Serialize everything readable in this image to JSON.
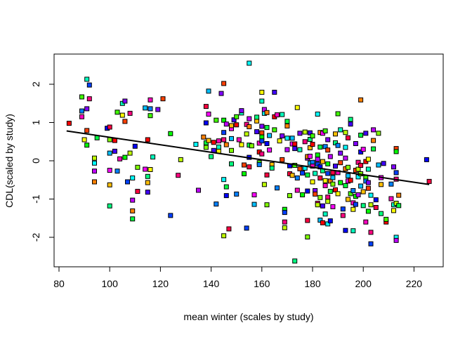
{
  "chart_data": {
    "type": "scatter",
    "title": "",
    "xlabel": "mean winter (scales by study)",
    "ylabel": "CDL(scaled by study)",
    "xlim": [
      80,
      230
    ],
    "ylim": [
      -2.8,
      2.7
    ],
    "xticks": [
      80,
      100,
      120,
      140,
      160,
      180,
      200,
      220
    ],
    "yticks": [
      -2,
      -1,
      0,
      1,
      2
    ],
    "grid": false,
    "legend": "none",
    "marker": "square",
    "regression_line": {
      "x": [
        83,
        226
      ],
      "y": [
        0.78,
        -0.62
      ],
      "color": "#000000"
    },
    "palette": [
      "#ff0000",
      "#ff4000",
      "#ff8000",
      "#ffbf00",
      "#ffff00",
      "#bfff00",
      "#80ff00",
      "#40ff00",
      "#00ff00",
      "#00ff40",
      "#00ff80",
      "#00ffbf",
      "#00ffff",
      "#00bfff",
      "#0080ff",
      "#0040ff",
      "#0000ff",
      "#4000ff",
      "#8000ff",
      "#bf00ff",
      "#ff00ff",
      "#ff00bf",
      "#ff0080",
      "#ff0040"
    ],
    "points": [
      [
        84,
        0.98
      ],
      [
        89,
        1.67
      ],
      [
        89,
        1.3
      ],
      [
        89,
        1.15
      ],
      [
        90,
        0.55
      ],
      [
        91,
        2.13
      ],
      [
        91,
        1.36
      ],
      [
        91,
        0.79
      ],
      [
        91,
        0.41
      ],
      [
        92,
        1.98
      ],
      [
        92,
        1.62
      ],
      [
        94,
        0.07
      ],
      [
        94,
        -0.06
      ],
      [
        94,
        -0.27
      ],
      [
        94,
        -0.55
      ],
      [
        95,
        0.6
      ],
      [
        99,
        0.85
      ],
      [
        100,
        0.88
      ],
      [
        100,
        0.55
      ],
      [
        100,
        0.2
      ],
      [
        100,
        -0.25
      ],
      [
        100,
        -0.63
      ],
      [
        100,
        -1.18
      ],
      [
        102,
        0.25
      ],
      [
        102,
        0.53
      ],
      [
        103,
        1.27
      ],
      [
        103,
        -0.27
      ],
      [
        104,
        0.05
      ],
      [
        105,
        1.19
      ],
      [
        105,
        1.5
      ],
      [
        106,
        1.56
      ],
      [
        106,
        1.03
      ],
      [
        106,
        0.09
      ],
      [
        107,
        -0.55
      ],
      [
        108,
        1.24
      ],
      [
        108,
        0.2
      ],
      [
        109,
        -0.45
      ],
      [
        109,
        -1.03
      ],
      [
        109,
        -1.31
      ],
      [
        109,
        -1.52
      ],
      [
        110,
        0.38
      ],
      [
        111,
        -0.8
      ],
      [
        111,
        -0.17
      ],
      [
        114,
        1.38
      ],
      [
        114,
        -0.22
      ],
      [
        115,
        -0.57
      ],
      [
        115,
        -0.41
      ],
      [
        115,
        -0.82
      ],
      [
        115,
        0.55
      ],
      [
        116,
        1.18
      ],
      [
        116,
        1.36
      ],
      [
        116,
        1.59
      ],
      [
        116,
        -0.23
      ],
      [
        117,
        0.1
      ],
      [
        119,
        1.34
      ],
      [
        121,
        1.62
      ],
      [
        124,
        0.71
      ],
      [
        124,
        -1.43
      ],
      [
        127,
        -0.38
      ],
      [
        128,
        0.03
      ],
      [
        134,
        0.43
      ],
      [
        135,
        -0.77
      ],
      [
        137,
        0.62
      ],
      [
        138,
        0.47
      ],
      [
        138,
        0.99
      ],
      [
        138,
        1.42
      ],
      [
        138,
        0.35
      ],
      [
        139,
        1.82
      ],
      [
        139,
        1.22
      ],
      [
        139,
        0.53
      ],
      [
        140,
        0.11
      ],
      [
        141,
        0.27
      ],
      [
        141,
        0.48
      ],
      [
        142,
        1.06
      ],
      [
        142,
        -1.13
      ],
      [
        143,
        0.52
      ],
      [
        143,
        0.25
      ],
      [
        143,
        0.36
      ],
      [
        144,
        1.76
      ],
      [
        145,
        2.02
      ],
      [
        145,
        1.06
      ],
      [
        145,
        0.74
      ],
      [
        145,
        0.55
      ],
      [
        145,
        -1.96
      ],
      [
        145,
        -0.49
      ],
      [
        146,
        0.96
      ],
      [
        146,
        0.42
      ],
      [
        146,
        -0.68
      ],
      [
        146,
        -0.91
      ],
      [
        147,
        -1.78
      ],
      [
        148,
        0.27
      ],
      [
        148,
        0.58
      ],
      [
        148,
        0.84
      ],
      [
        148,
        0.92
      ],
      [
        148,
        -0.08
      ],
      [
        149,
        1.07
      ],
      [
        150,
        0.94
      ],
      [
        150,
        1.15
      ],
      [
        150,
        -0.87
      ],
      [
        151,
        0.55
      ],
      [
        152,
        0.42
      ],
      [
        152,
        1.25
      ],
      [
        152,
        1.31
      ],
      [
        153,
        -0.11
      ],
      [
        153,
        -0.34
      ],
      [
        154,
        -1.76
      ],
      [
        154,
        0.95
      ],
      [
        154,
        0.7
      ],
      [
        155,
        2.55
      ],
      [
        155,
        1.1
      ],
      [
        155,
        0.89
      ],
      [
        155,
        0.41
      ],
      [
        155,
        0.09
      ],
      [
        155,
        -0.16
      ],
      [
        156,
        0.39
      ],
      [
        157,
        -1.14
      ],
      [
        157,
        -0.89
      ],
      [
        158,
        1.04
      ],
      [
        158,
        1.14
      ],
      [
        158,
        0.76
      ],
      [
        159,
        0.23
      ],
      [
        159,
        -0.05
      ],
      [
        159,
        -0.1
      ],
      [
        159,
        0.46
      ],
      [
        160,
        1.79
      ],
      [
        160,
        1.56
      ],
      [
        160,
        0.9
      ],
      [
        160,
        0.73
      ],
      [
        160,
        0.62
      ],
      [
        160,
        0.52
      ],
      [
        160,
        0.18
      ],
      [
        161,
        -0.62
      ],
      [
        161,
        1.24
      ],
      [
        161,
        1.34
      ],
      [
        162,
        1.26
      ],
      [
        162,
        0.87
      ],
      [
        162,
        0.45
      ],
      [
        162,
        -0.37
      ],
      [
        162,
        -1.15
      ],
      [
        163,
        0.66
      ],
      [
        163,
        0.28
      ],
      [
        164,
        -0.1
      ],
      [
        164,
        -0.19
      ],
      [
        165,
        1.79
      ],
      [
        165,
        1.15
      ],
      [
        165,
        0.81
      ],
      [
        166,
        -0.71
      ],
      [
        166,
        1.2
      ],
      [
        167,
        0.52
      ],
      [
        168,
        1.21
      ],
      [
        168,
        0.65
      ],
      [
        168,
        0.03
      ],
      [
        169,
        -1.27
      ],
      [
        169,
        -1.35
      ],
      [
        169,
        -1.6
      ],
      [
        169,
        -1.75
      ],
      [
        170,
        0.59
      ],
      [
        170,
        0.29
      ],
      [
        170,
        0.91
      ],
      [
        170,
        1.03
      ],
      [
        171,
        -0.13
      ],
      [
        171,
        -0.34
      ],
      [
        171,
        -0.91
      ],
      [
        172,
        0.59
      ],
      [
        172,
        0.44
      ],
      [
        172,
        -0.38
      ],
      [
        173,
        -2.62
      ],
      [
        173,
        0.32
      ],
      [
        173,
        0.44
      ],
      [
        173,
        -0.12
      ],
      [
        174,
        -0.45
      ],
      [
        174,
        -0.77
      ],
      [
        174,
        1.39
      ],
      [
        175,
        0.29
      ],
      [
        175,
        0.72
      ],
      [
        175,
        -0.21
      ],
      [
        176,
        -0.89
      ],
      [
        176,
        -0.32
      ],
      [
        177,
        0.5
      ],
      [
        177,
        0.75
      ],
      [
        177,
        -0.19
      ],
      [
        178,
        0.07
      ],
      [
        178,
        0.11
      ],
      [
        178,
        -0.37
      ],
      [
        178,
        -0.79
      ],
      [
        178,
        -1.56
      ],
      [
        178,
        -1.99
      ],
      [
        179,
        -0.06
      ],
      [
        179,
        0.12
      ],
      [
        179,
        0.34
      ],
      [
        179,
        0.56
      ],
      [
        179,
        0.73
      ],
      [
        180,
        0.43
      ],
      [
        180,
        0.65
      ],
      [
        180,
        -0.04
      ],
      [
        180,
        -0.14
      ],
      [
        180,
        -0.55
      ],
      [
        181,
        -0.33
      ],
      [
        181,
        -0.78
      ],
      [
        181,
        -0.87
      ],
      [
        182,
        0.15
      ],
      [
        182,
        -0.09
      ],
      [
        182,
        -1.11
      ],
      [
        182,
        -1.15
      ],
      [
        182,
        1.22
      ],
      [
        182,
        0.04
      ],
      [
        183,
        0.74
      ],
      [
        183,
        0.36
      ],
      [
        183,
        -0.16
      ],
      [
        183,
        -0.45
      ],
      [
        183,
        -0.96
      ],
      [
        183,
        -1.55
      ],
      [
        184,
        0.72
      ],
      [
        184,
        -0.02
      ],
      [
        184,
        -0.26
      ],
      [
        184,
        -1.18
      ],
      [
        184,
        -1.62
      ],
      [
        185,
        0.78
      ],
      [
        185,
        0.37
      ],
      [
        185,
        -0.65
      ],
      [
        185,
        -0.52
      ],
      [
        185,
        -1.39
      ],
      [
        186,
        0.55
      ],
      [
        186,
        0.28
      ],
      [
        186,
        -0.08
      ],
      [
        186,
        -0.33
      ],
      [
        186,
        -0.95
      ],
      [
        186,
        -1.06
      ],
      [
        186,
        -1.65
      ],
      [
        187,
        0.11
      ],
      [
        187,
        -0.53
      ],
      [
        187,
        -0.8
      ],
      [
        187,
        -1.57
      ],
      [
        188,
        -0.31
      ],
      [
        188,
        -0.61
      ],
      [
        188,
        -0.44
      ],
      [
        188,
        -1.2
      ],
      [
        189,
        0.7
      ],
      [
        189,
        0.47
      ],
      [
        189,
        -0.14
      ],
      [
        189,
        -0.76
      ],
      [
        190,
        1.23
      ],
      [
        190,
        0.4
      ],
      [
        190,
        -0.31
      ],
      [
        190,
        -0.86
      ],
      [
        191,
        0.81
      ],
      [
        191,
        0.2
      ],
      [
        191,
        -0.05
      ],
      [
        191,
        -0.57
      ],
      [
        192,
        -1.26
      ],
      [
        192,
        -1.43
      ],
      [
        193,
        0.74
      ],
      [
        193,
        0.35
      ],
      [
        193,
        0.07
      ],
      [
        193,
        -0.21
      ],
      [
        193,
        -0.65
      ],
      [
        193,
        -1.82
      ],
      [
        194,
        0.6
      ],
      [
        194,
        -0.17
      ],
      [
        194,
        -0.39
      ],
      [
        194,
        -0.53
      ],
      [
        194,
        -1.01
      ],
      [
        195,
        1.08
      ],
      [
        195,
        0.96
      ],
      [
        195,
        -0.51
      ],
      [
        195,
        -0.86
      ],
      [
        196,
        -0.78
      ],
      [
        196,
        -1.1
      ],
      [
        196,
        -1.27
      ],
      [
        196,
        -1.83
      ],
      [
        197,
        0.45
      ],
      [
        197,
        -0.25
      ],
      [
        197,
        -0.93
      ],
      [
        197,
        -1.14
      ],
      [
        198,
        -0.04
      ],
      [
        198,
        -0.22
      ],
      [
        198,
        -0.42
      ],
      [
        198,
        -0.89
      ],
      [
        199,
        1.59
      ],
      [
        199,
        0.67
      ],
      [
        199,
        0.23
      ],
      [
        199,
        -0.12
      ],
      [
        199,
        -0.34
      ],
      [
        199,
        -0.66
      ],
      [
        200,
        0.3
      ],
      [
        200,
        -0.81
      ],
      [
        200,
        -1.17
      ],
      [
        201,
        0.72
      ],
      [
        201,
        -0.02
      ],
      [
        201,
        -0.44
      ],
      [
        201,
        -0.53
      ],
      [
        201,
        -1.6
      ],
      [
        202,
        0.04
      ],
      [
        202,
        -0.22
      ],
      [
        202,
        -0.57
      ],
      [
        202,
        -0.72
      ],
      [
        202,
        -1.32
      ],
      [
        203,
        -2.17
      ],
      [
        203,
        -1.87
      ],
      [
        203,
        -1.15
      ],
      [
        203,
        -0.9
      ],
      [
        204,
        0.81
      ],
      [
        204,
        0.53
      ],
      [
        204,
        0.31
      ],
      [
        205,
        -1.02
      ],
      [
        205,
        -1.22
      ],
      [
        206,
        0.72
      ],
      [
        206,
        -0.11
      ],
      [
        207,
        -0.44
      ],
      [
        207,
        -0.62
      ],
      [
        207,
        -1.38
      ],
      [
        208,
        -0.07
      ],
      [
        209,
        -1.6
      ],
      [
        209,
        -1.53
      ],
      [
        211,
        -0.61
      ],
      [
        211,
        -0.99
      ],
      [
        212,
        -1.3
      ],
      [
        212,
        -1.15
      ],
      [
        212,
        -0.16
      ],
      [
        213,
        0.32
      ],
      [
        213,
        0.24
      ],
      [
        213,
        -0.31
      ],
      [
        213,
        -0.48
      ],
      [
        213,
        -1.11
      ],
      [
        213,
        -2.0
      ],
      [
        213,
        -2.08
      ],
      [
        214,
        -0.9
      ],
      [
        214,
        -1.17
      ],
      [
        225,
        0.03
      ],
      [
        226,
        -0.54
      ]
    ]
  }
}
